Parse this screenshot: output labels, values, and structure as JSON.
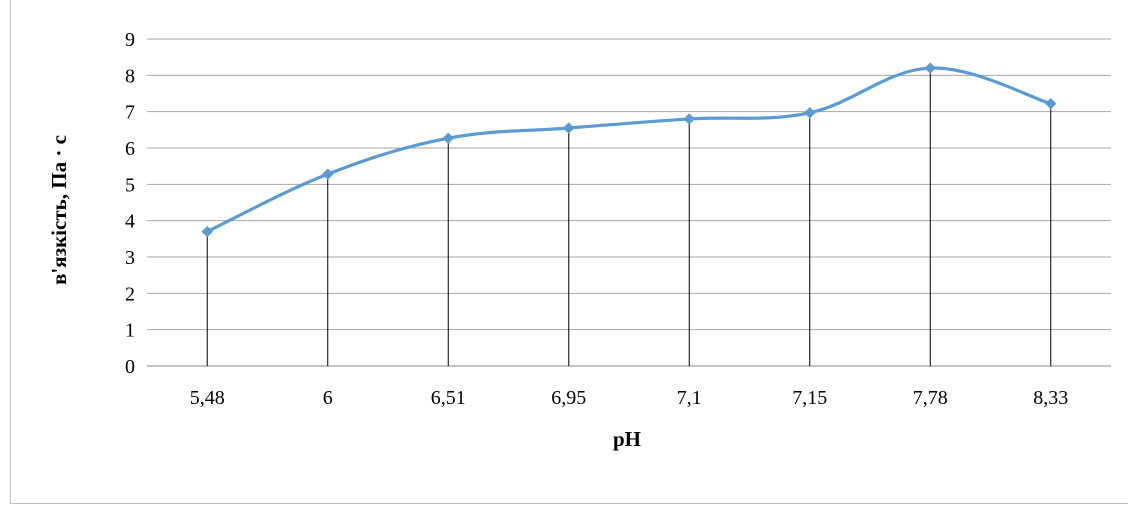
{
  "chart_data": {
    "type": "line",
    "categories": [
      "5,48",
      "6",
      "6,51",
      "6,95",
      "7,1",
      "7,15",
      "7,78",
      "8,33"
    ],
    "series": [
      {
        "values": [
          3.7,
          5.28,
          6.27,
          6.55,
          6.8,
          6.97,
          8.2,
          7.22
        ]
      }
    ],
    "title": "",
    "xlabel": "pH",
    "ylabel": "в'язкість, Па · с",
    "ylim": [
      0,
      9
    ],
    "yticks": [
      "0",
      "1",
      "2",
      "3",
      "4",
      "5",
      "6",
      "7",
      "8",
      "9"
    ],
    "grid": true,
    "drop_lines": true,
    "legend": "none",
    "line_color": "#5b9bd5",
    "grid_color": "#a6a6a6",
    "drop_line_color": "#000000"
  }
}
